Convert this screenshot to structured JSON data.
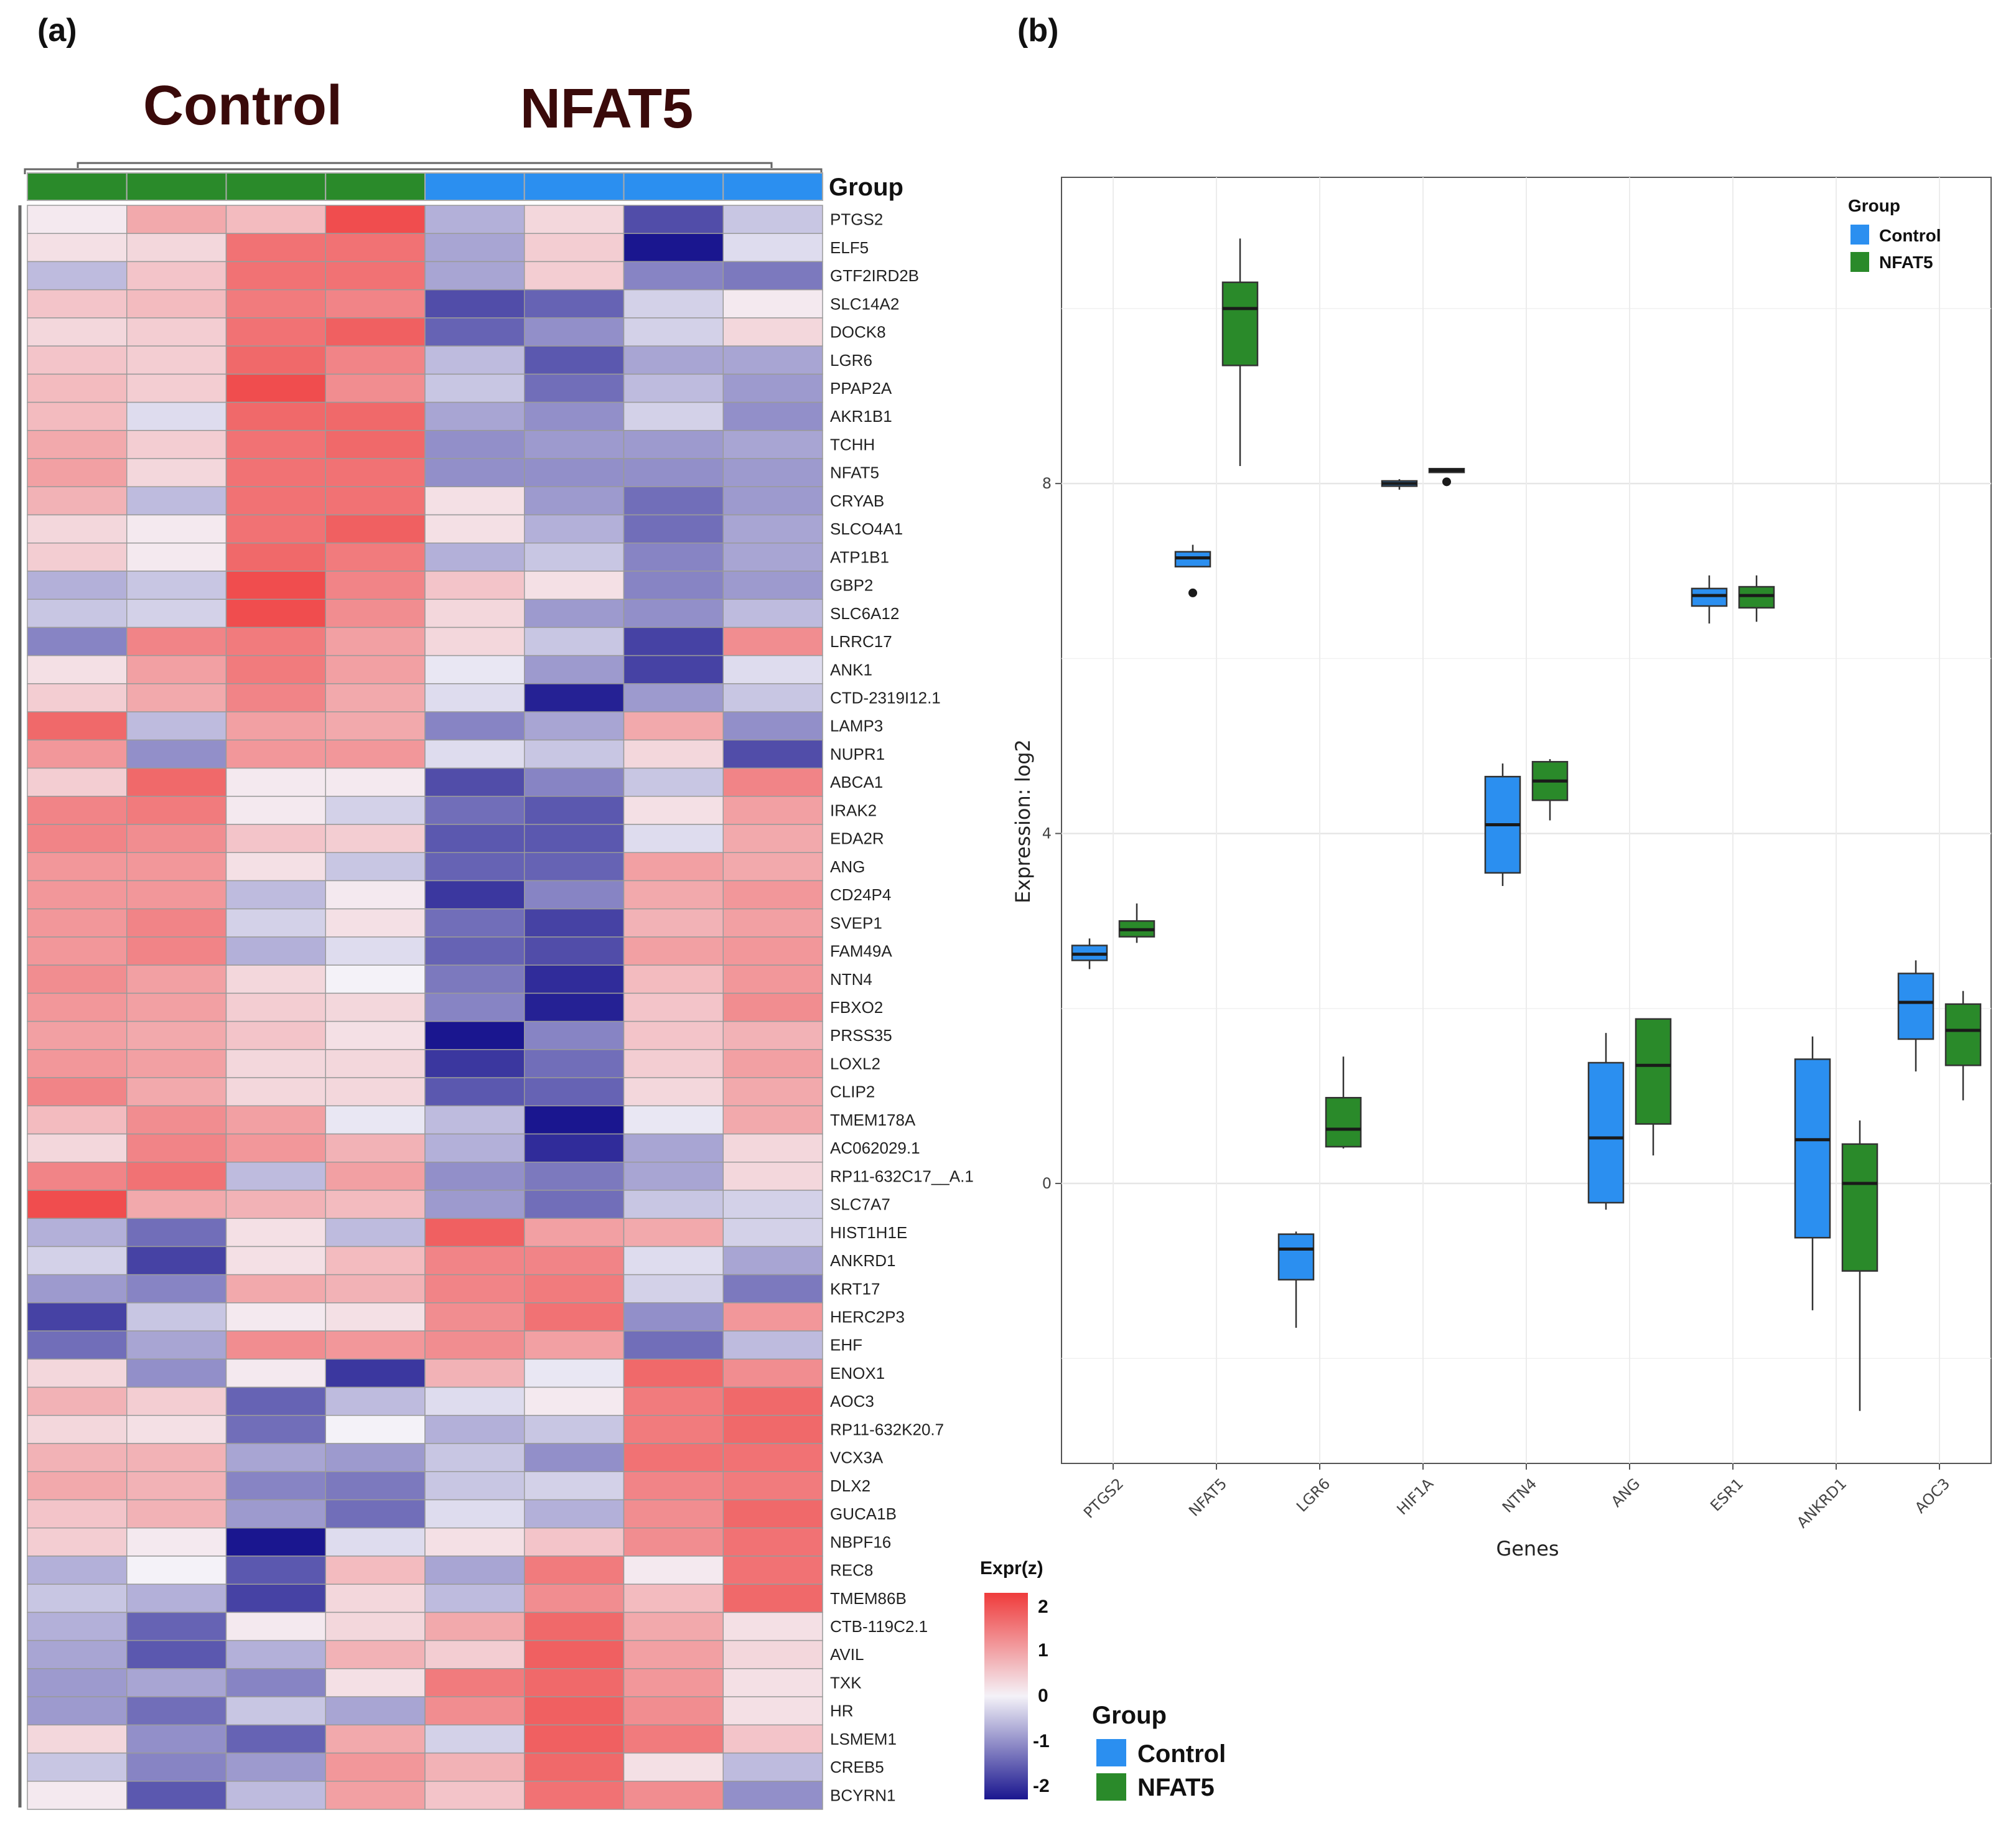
{
  "panel_a": {
    "label": "(a)",
    "title_control": "Control",
    "title_nfat5": "NFAT5",
    "group_row_label": "Group",
    "colorbar_title": "Expr(z)",
    "colorbar_ticks": [
      "2",
      "1",
      "0",
      "-1",
      "-2"
    ],
    "legend_title": "Group",
    "legend_entries": [
      "Control",
      "NFAT5"
    ]
  },
  "panel_b": {
    "label": "(b)",
    "legend_title": "Group",
    "legend_entries": [
      "Control",
      "NFAT5"
    ],
    "xlabel": "Genes",
    "ylabel": "Expression: log2"
  },
  "colors": {
    "green": "#2a8a2a",
    "blue": "#2b8ff0",
    "heat_high": "#ef3b3b",
    "heat_mid": "#f4f2f8",
    "heat_low": "#1a168f"
  },
  "chart_data": [
    {
      "type": "heatmap",
      "title": "Heatmap (a)",
      "value_label": "Expr(z)",
      "value_range": [
        -2,
        2
      ],
      "columns": [
        {
          "group": "NFAT5"
        },
        {
          "group": "NFAT5"
        },
        {
          "group": "NFAT5"
        },
        {
          "group": "NFAT5"
        },
        {
          "group": "Control"
        },
        {
          "group": "Control"
        },
        {
          "group": "Control"
        },
        {
          "group": "Control"
        }
      ],
      "rows": [
        "PTGS2",
        "ELF5",
        "GTF2IRD2B",
        "SLC14A2",
        "DOCK8",
        "LGR6",
        "PPAP2A",
        "AKR1B1",
        "TCHH",
        "NFAT5",
        "CRYAB",
        "SLCO4A1",
        "ATP1B1",
        "GBP2",
        "SLC6A12",
        "LRRC17",
        "ANK1",
        "CTD-2319I12.1",
        "LAMP3",
        "NUPR1",
        "ABCA1",
        "IRAK2",
        "EDA2R",
        "ANG",
        "CD24P4",
        "SVEP1",
        "FAM49A",
        "NTN4",
        "FBXO2",
        "PRSS35",
        "LOXL2",
        "CLIP2",
        "TMEM178A",
        "AC062029.1",
        "RP11-632C17__A.1",
        "SLC7A7",
        "HIST1H1E",
        "ANKRD1",
        "KRT17",
        "HERC2P3",
        "EHF",
        "ENOX1",
        "AOC3",
        "RP11-632K20.7",
        "VCX3A",
        "DLX2",
        "GUCA1B",
        "NBPF16",
        "REC8",
        "TMEM86B",
        "CTB-119C2.1",
        "AVIL",
        "TXK",
        "HR",
        "LSMEM1",
        "CREB5",
        "BCYRN1"
      ],
      "values": [
        [
          0.1,
          0.8,
          0.6,
          1.8,
          -0.6,
          0.3,
          -1.5,
          -0.4
        ],
        [
          0.2,
          0.3,
          1.4,
          1.4,
          -0.7,
          0.4,
          -2.0,
          -0.2
        ],
        [
          -0.5,
          0.5,
          1.4,
          1.4,
          -0.7,
          0.4,
          -1.0,
          -1.1
        ],
        [
          0.5,
          0.6,
          1.3,
          1.2,
          -1.5,
          -1.3,
          -0.3,
          0.1
        ],
        [
          0.3,
          0.4,
          1.4,
          1.6,
          -1.3,
          -0.9,
          -0.3,
          0.3
        ],
        [
          0.5,
          0.4,
          1.5,
          1.2,
          -0.5,
          -1.4,
          -0.7,
          -0.7
        ],
        [
          0.6,
          0.4,
          1.8,
          1.1,
          -0.4,
          -1.2,
          -0.5,
          -0.8
        ],
        [
          0.6,
          -0.2,
          1.5,
          1.5,
          -0.7,
          -0.9,
          -0.3,
          -0.9
        ],
        [
          0.8,
          0.4,
          1.4,
          1.5,
          -0.9,
          -0.8,
          -0.8,
          -0.7
        ],
        [
          0.9,
          0.3,
          1.4,
          1.4,
          -0.9,
          -0.9,
          -0.9,
          -0.8
        ],
        [
          0.7,
          -0.5,
          1.4,
          1.4,
          0.2,
          -0.8,
          -1.2,
          -0.8
        ],
        [
          0.3,
          0.1,
          1.4,
          1.6,
          0.2,
          -0.6,
          -1.2,
          -0.7
        ],
        [
          0.4,
          0.1,
          1.5,
          1.3,
          -0.6,
          -0.4,
          -1.0,
          -0.7
        ],
        [
          -0.6,
          -0.4,
          1.8,
          1.2,
          0.5,
          0.2,
          -1.0,
          -0.8
        ],
        [
          -0.4,
          -0.3,
          1.8,
          1.1,
          0.3,
          -0.8,
          -0.9,
          -0.5
        ],
        [
          -1.0,
          1.2,
          1.3,
          0.9,
          0.3,
          -0.4,
          -1.6,
          1.1
        ],
        [
          0.2,
          0.9,
          1.3,
          0.9,
          -0.1,
          -0.8,
          -1.6,
          -0.2
        ],
        [
          0.4,
          0.8,
          1.2,
          0.8,
          -0.2,
          -1.9,
          -0.8,
          -0.4
        ],
        [
          1.5,
          -0.5,
          0.9,
          0.8,
          -1.0,
          -0.7,
          0.8,
          -0.9
        ],
        [
          1.0,
          -0.9,
          1.0,
          1.0,
          -0.2,
          -0.4,
          0.3,
          -1.5
        ],
        [
          0.4,
          1.5,
          0.1,
          0.1,
          -1.5,
          -1.0,
          -0.4,
          1.2
        ],
        [
          1.2,
          1.3,
          0.1,
          -0.3,
          -1.2,
          -1.4,
          0.2,
          0.9
        ],
        [
          1.2,
          1.1,
          0.5,
          0.4,
          -1.4,
          -1.4,
          -0.2,
          0.8
        ],
        [
          1.0,
          1.0,
          0.2,
          -0.4,
          -1.3,
          -1.3,
          0.9,
          0.8
        ],
        [
          1.0,
          1.0,
          -0.5,
          0.1,
          -1.7,
          -1.0,
          0.8,
          1.0
        ],
        [
          1.0,
          1.2,
          -0.3,
          0.2,
          -1.2,
          -1.6,
          0.7,
          0.9
        ],
        [
          1.0,
          1.2,
          -0.6,
          -0.2,
          -1.3,
          -1.5,
          0.9,
          1.0
        ],
        [
          1.1,
          0.9,
          0.3,
          0.0,
          -1.1,
          -1.8,
          0.6,
          1.0
        ],
        [
          1.0,
          0.9,
          0.4,
          0.3,
          -1.0,
          -1.9,
          0.5,
          1.1
        ],
        [
          0.9,
          0.8,
          0.5,
          0.2,
          -2.0,
          -1.0,
          0.5,
          0.7
        ],
        [
          1.0,
          0.9,
          0.3,
          0.3,
          -1.7,
          -1.2,
          0.4,
          0.9
        ],
        [
          1.2,
          0.8,
          0.3,
          0.3,
          -1.4,
          -1.3,
          0.3,
          0.8
        ],
        [
          0.6,
          1.1,
          0.9,
          -0.1,
          -0.5,
          -2.1,
          -0.1,
          0.8
        ],
        [
          0.3,
          1.2,
          1.0,
          0.7,
          -0.6,
          -1.8,
          -0.7,
          0.3
        ],
        [
          1.2,
          1.4,
          -0.5,
          0.9,
          -0.9,
          -1.1,
          -0.7,
          0.3
        ],
        [
          1.8,
          0.8,
          0.7,
          0.6,
          -0.8,
          -1.2,
          -0.4,
          -0.3
        ],
        [
          -0.6,
          -1.2,
          0.2,
          -0.5,
          1.6,
          0.9,
          0.8,
          -0.3
        ],
        [
          -0.3,
          -1.6,
          0.2,
          0.6,
          1.2,
          1.2,
          -0.2,
          -0.7
        ],
        [
          -0.8,
          -1.0,
          0.8,
          0.7,
          1.2,
          1.3,
          -0.3,
          -1.1
        ],
        [
          -1.6,
          -0.4,
          0.1,
          0.2,
          1.1,
          1.4,
          -0.9,
          1.0
        ],
        [
          -1.2,
          -0.7,
          1.1,
          1.0,
          1.1,
          0.9,
          -1.2,
          -0.5
        ],
        [
          0.3,
          -0.9,
          0.1,
          -1.7,
          0.7,
          -0.1,
          1.5,
          1.1
        ],
        [
          0.7,
          0.4,
          -1.3,
          -0.5,
          -0.2,
          0.1,
          1.3,
          1.5
        ],
        [
          0.3,
          0.2,
          -1.2,
          0.0,
          -0.6,
          -0.4,
          1.3,
          1.5
        ],
        [
          0.7,
          0.7,
          -0.7,
          -0.8,
          -0.4,
          -0.9,
          1.4,
          1.4
        ],
        [
          0.8,
          0.7,
          -1.0,
          -1.1,
          -0.4,
          -0.3,
          1.2,
          1.3
        ],
        [
          0.5,
          0.7,
          -0.8,
          -1.2,
          -0.2,
          -0.6,
          1.1,
          1.5
        ],
        [
          0.4,
          0.1,
          -2.2,
          -0.2,
          0.2,
          0.5,
          1.1,
          1.4
        ],
        [
          -0.6,
          0.0,
          -1.4,
          0.6,
          -0.7,
          1.3,
          0.1,
          1.4
        ],
        [
          -0.4,
          -0.6,
          -1.6,
          0.3,
          -0.5,
          1.1,
          0.6,
          1.5
        ],
        [
          -0.6,
          -1.3,
          0.1,
          0.3,
          0.8,
          1.5,
          0.8,
          0.2
        ],
        [
          -0.7,
          -1.4,
          -0.6,
          0.7,
          0.4,
          1.6,
          0.9,
          0.3
        ],
        [
          -0.8,
          -0.7,
          -1.0,
          0.2,
          1.3,
          1.5,
          1.0,
          0.2
        ],
        [
          -0.8,
          -1.2,
          -0.4,
          -0.7,
          1.1,
          1.6,
          1.1,
          0.2
        ],
        [
          0.3,
          -0.9,
          -1.3,
          0.8,
          -0.3,
          1.6,
          1.3,
          0.5
        ],
        [
          -0.4,
          -1.0,
          -0.8,
          1.0,
          0.7,
          1.5,
          0.2,
          -0.5
        ],
        [
          0.1,
          -1.4,
          -0.5,
          0.9,
          0.5,
          1.4,
          1.1,
          -0.9
        ]
      ]
    },
    {
      "type": "box",
      "title": "Boxplot (b)",
      "xlabel": "Genes",
      "ylabel": "Expression: log2",
      "ylim": [
        -3.2,
        11.5
      ],
      "yticks": [
        0,
        4,
        8
      ],
      "categories": [
        "PTGS2",
        "NFAT5",
        "LGR6",
        "HIF1A",
        "NTN4",
        "ANG",
        "ESR1",
        "ANKRD1",
        "AOC3"
      ],
      "legend": {
        "title": "Group",
        "position": "top-right"
      },
      "series": [
        {
          "name": "Control",
          "boxes": [
            {
              "low": 2.45,
              "q1": 2.55,
              "median": 2.62,
              "q3": 2.72,
              "high": 2.8,
              "outliers": []
            },
            {
              "low": 7.05,
              "q1": 7.05,
              "median": 7.15,
              "q3": 7.22,
              "high": 7.3,
              "outliers": [
                6.75
              ]
            },
            {
              "low": -1.65,
              "q1": -1.1,
              "median": -0.75,
              "q3": -0.58,
              "high": -0.55,
              "outliers": []
            },
            {
              "low": 7.93,
              "q1": 7.97,
              "median": 8.0,
              "q3": 8.03,
              "high": 8.05,
              "outliers": []
            },
            {
              "low": 3.4,
              "q1": 3.55,
              "median": 4.1,
              "q3": 4.65,
              "high": 4.8,
              "outliers": []
            },
            {
              "low": -0.3,
              "q1": -0.22,
              "median": 0.52,
              "q3": 1.38,
              "high": 1.72,
              "outliers": []
            },
            {
              "low": 6.4,
              "q1": 6.6,
              "median": 6.72,
              "q3": 6.8,
              "high": 6.95,
              "outliers": []
            },
            {
              "low": -1.45,
              "q1": -0.62,
              "median": 0.5,
              "q3": 1.42,
              "high": 1.68,
              "outliers": []
            },
            {
              "low": 1.28,
              "q1": 1.65,
              "median": 2.07,
              "q3": 2.4,
              "high": 2.55,
              "outliers": []
            }
          ]
        },
        {
          "name": "NFAT5",
          "boxes": [
            {
              "low": 2.75,
              "q1": 2.82,
              "median": 2.9,
              "q3": 3.0,
              "high": 3.2,
              "outliers": []
            },
            {
              "low": 8.2,
              "q1": 9.35,
              "median": 10.0,
              "q3": 10.3,
              "high": 10.8,
              "outliers": []
            },
            {
              "low": 0.4,
              "q1": 0.42,
              "median": 0.62,
              "q3": 0.98,
              "high": 1.45,
              "outliers": []
            },
            {
              "low": 8.13,
              "q1": 8.13,
              "median": 8.15,
              "q3": 8.17,
              "high": 8.17,
              "outliers": [
                8.02
              ]
            },
            {
              "low": 4.15,
              "q1": 4.38,
              "median": 4.6,
              "q3": 4.82,
              "high": 4.85,
              "outliers": []
            },
            {
              "low": 0.32,
              "q1": 0.68,
              "median": 1.35,
              "q3": 1.88,
              "high": 1.88,
              "outliers": []
            },
            {
              "low": 6.42,
              "q1": 6.58,
              "median": 6.72,
              "q3": 6.82,
              "high": 6.95,
              "outliers": []
            },
            {
              "low": -2.6,
              "q1": -1.0,
              "median": 0.0,
              "q3": 0.45,
              "high": 0.72,
              "outliers": []
            },
            {
              "low": 0.95,
              "q1": 1.35,
              "median": 1.75,
              "q3": 2.05,
              "high": 2.2,
              "outliers": []
            }
          ]
        }
      ]
    }
  ]
}
